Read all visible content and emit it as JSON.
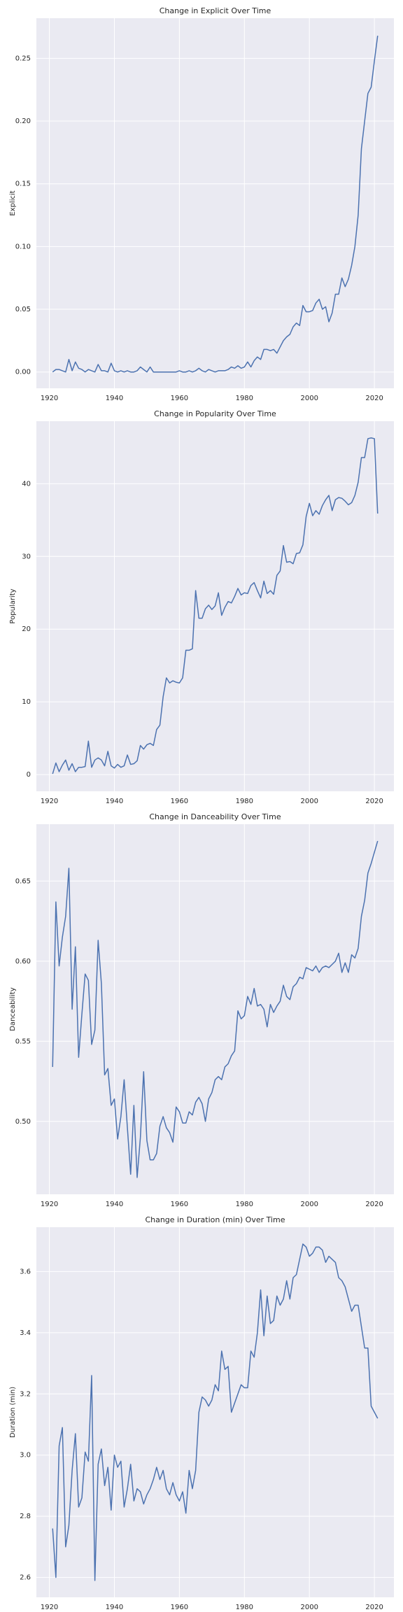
{
  "chart_data": [
    {
      "type": "line",
      "title": "Change in Explicit Over Time",
      "y_label": "Explicit",
      "x": [
        1921,
        1922,
        1923,
        1924,
        1925,
        1926,
        1927,
        1928,
        1929,
        1930,
        1931,
        1932,
        1933,
        1934,
        1935,
        1936,
        1937,
        1938,
        1939,
        1940,
        1941,
        1942,
        1943,
        1944,
        1945,
        1946,
        1947,
        1948,
        1949,
        1950,
        1951,
        1952,
        1953,
        1954,
        1955,
        1956,
        1957,
        1958,
        1959,
        1960,
        1961,
        1962,
        1963,
        1964,
        1965,
        1966,
        1967,
        1968,
        1969,
        1970,
        1971,
        1972,
        1973,
        1974,
        1975,
        1976,
        1977,
        1978,
        1979,
        1980,
        1981,
        1982,
        1983,
        1984,
        1985,
        1986,
        1987,
        1988,
        1989,
        1990,
        1991,
        1992,
        1993,
        1994,
        1995,
        1996,
        1997,
        1998,
        1999,
        2000,
        2001,
        2002,
        2003,
        2004,
        2005,
        2006,
        2007,
        2008,
        2009,
        2010,
        2011,
        2012,
        2013,
        2014,
        2015,
        2016,
        2017,
        2018,
        2019,
        2020,
        2021
      ],
      "series": [
        {
          "name": "Explicit",
          "color": "#4c72b0",
          "values": [
            0,
            0.002,
            0.002,
            0.001,
            0,
            0.01,
            0.001,
            0.008,
            0.003,
            0.002,
            0,
            0.002,
            0.001,
            0,
            0.006,
            0.001,
            0.001,
            0,
            0.007,
            0.001,
            0,
            0.001,
            0,
            0.001,
            0,
            0,
            0.001,
            0.004,
            0.002,
            0,
            0.004,
            0,
            0,
            0,
            0,
            0,
            0,
            0,
            0,
            0.001,
            0,
            0,
            0.001,
            0,
            0.001,
            0.003,
            0.001,
            0,
            0.002,
            0.001,
            0,
            0.001,
            0.001,
            0.001,
            0.002,
            0.004,
            0.003,
            0.005,
            0.003,
            0.004,
            0.008,
            0.004,
            0.009,
            0.012,
            0.01,
            0.018,
            0.018,
            0.017,
            0.018,
            0.015,
            0.02,
            0.025,
            0.028,
            0.03,
            0.036,
            0.039,
            0.037,
            0.053,
            0.048,
            0.048,
            0.049,
            0.055,
            0.058,
            0.05,
            0.052,
            0.04,
            0.047,
            0.062,
            0.062,
            0.075,
            0.068,
            0.074,
            0.085,
            0.1,
            0.125,
            0.178,
            0.2,
            0.222,
            0.227,
            0.248,
            0.268
          ]
        }
      ],
      "xlim": [
        1916,
        2026
      ],
      "xticks": [
        1920,
        1940,
        1960,
        1980,
        2000,
        2020
      ],
      "ylim": [
        -0.013,
        0.282
      ],
      "yticks": [
        {
          "value": 0,
          "label": "0.00"
        },
        {
          "value": 0.05,
          "label": "0.05"
        },
        {
          "value": 0.1,
          "label": "0.10"
        },
        {
          "value": 0.15,
          "label": "0.15"
        },
        {
          "value": 0.2,
          "label": "0.20"
        },
        {
          "value": 0.25,
          "label": "0.25"
        }
      ],
      "grid": true
    },
    {
      "type": "line",
      "title": "Change in Popularity Over Time",
      "y_label": "Popularity",
      "x": [
        1921,
        1922,
        1923,
        1924,
        1925,
        1926,
        1927,
        1928,
        1929,
        1930,
        1931,
        1932,
        1933,
        1934,
        1935,
        1936,
        1937,
        1938,
        1939,
        1940,
        1941,
        1942,
        1943,
        1944,
        1945,
        1946,
        1947,
        1948,
        1949,
        1950,
        1951,
        1952,
        1953,
        1954,
        1955,
        1956,
        1957,
        1958,
        1959,
        1960,
        1961,
        1962,
        1963,
        1964,
        1965,
        1966,
        1967,
        1968,
        1969,
        1970,
        1971,
        1972,
        1973,
        1974,
        1975,
        1976,
        1977,
        1978,
        1979,
        1980,
        1981,
        1982,
        1983,
        1984,
        1985,
        1986,
        1987,
        1988,
        1989,
        1990,
        1991,
        1992,
        1993,
        1994,
        1995,
        1996,
        1997,
        1998,
        1999,
        2000,
        2001,
        2002,
        2003,
        2004,
        2005,
        2006,
        2007,
        2008,
        2009,
        2010,
        2011,
        2012,
        2013,
        2014,
        2015,
        2016,
        2017,
        2018,
        2019,
        2020,
        2021
      ],
      "series": [
        {
          "name": "Popularity",
          "color": "#4c72b0",
          "values": [
            0.1,
            1.6,
            0.4,
            1.3,
            2.0,
            0.6,
            1.5,
            0.4,
            1.0,
            1.0,
            1.1,
            4.6,
            1.0,
            2.0,
            2.3,
            2.0,
            1.2,
            3.2,
            1.2,
            0.9,
            1.4,
            1.0,
            1.2,
            2.7,
            1.4,
            1.5,
            1.9,
            4.0,
            3.5,
            4.1,
            4.3,
            4.0,
            6.2,
            6.8,
            10.7,
            13.3,
            12.6,
            12.9,
            12.7,
            12.6,
            13.3,
            17.1,
            17.1,
            17.3,
            25.3,
            21.5,
            21.5,
            22.8,
            23.3,
            22.7,
            23.2,
            25.0,
            21.9,
            23.0,
            23.8,
            23.6,
            24.5,
            25.6,
            24.7,
            25.0,
            24.9,
            26.0,
            26.4,
            25.3,
            24.3,
            26.6,
            24.9,
            25.3,
            24.8,
            27.4,
            28.0,
            31.5,
            29.2,
            29.3,
            29.0,
            30.4,
            30.5,
            31.6,
            35.5,
            37.3,
            35.6,
            36.3,
            35.8,
            37.0,
            37.8,
            38.4,
            36.3,
            37.8,
            38.1,
            38.0,
            37.6,
            37.1,
            37.4,
            38.4,
            40.2,
            43.6,
            43.6,
            46.2,
            46.3,
            46.2,
            35.9
          ]
        }
      ],
      "xlim": [
        1916,
        2026
      ],
      "xticks": [
        1920,
        1940,
        1960,
        1980,
        2000,
        2020
      ],
      "ylim": [
        -2.3,
        48.6
      ],
      "yticks": [
        0,
        10,
        20,
        30,
        40
      ],
      "grid": true
    },
    {
      "type": "line",
      "title": "Change in Danceability Over Time",
      "y_label": "Danceability",
      "x": [
        1921,
        1922,
        1923,
        1924,
        1925,
        1926,
        1927,
        1928,
        1929,
        1930,
        1931,
        1932,
        1933,
        1934,
        1935,
        1936,
        1937,
        1938,
        1939,
        1940,
        1941,
        1942,
        1943,
        1944,
        1945,
        1946,
        1947,
        1948,
        1949,
        1950,
        1951,
        1952,
        1953,
        1954,
        1955,
        1956,
        1957,
        1958,
        1959,
        1960,
        1961,
        1962,
        1963,
        1964,
        1965,
        1966,
        1967,
        1968,
        1969,
        1970,
        1971,
        1972,
        1973,
        1974,
        1975,
        1976,
        1977,
        1978,
        1979,
        1980,
        1981,
        1982,
        1983,
        1984,
        1985,
        1986,
        1987,
        1988,
        1989,
        1990,
        1991,
        1992,
        1993,
        1994,
        1995,
        1996,
        1997,
        1998,
        1999,
        2000,
        2001,
        2002,
        2003,
        2004,
        2005,
        2006,
        2007,
        2008,
        2009,
        2010,
        2011,
        2012,
        2013,
        2014,
        2015,
        2016,
        2017,
        2018,
        2019,
        2020,
        2021
      ],
      "series": [
        {
          "name": "Danceability",
          "color": "#4c72b0",
          "values": [
            0.534,
            0.637,
            0.597,
            0.615,
            0.628,
            0.658,
            0.57,
            0.609,
            0.54,
            0.567,
            0.592,
            0.588,
            0.548,
            0.557,
            0.613,
            0.586,
            0.529,
            0.533,
            0.51,
            0.514,
            0.489,
            0.503,
            0.526,
            0.496,
            0.467,
            0.51,
            0.465,
            0.49,
            0.531,
            0.488,
            0.476,
            0.476,
            0.48,
            0.497,
            0.503,
            0.496,
            0.493,
            0.487,
            0.509,
            0.506,
            0.499,
            0.499,
            0.506,
            0.504,
            0.512,
            0.515,
            0.511,
            0.5,
            0.514,
            0.518,
            0.526,
            0.528,
            0.526,
            0.534,
            0.536,
            0.541,
            0.544,
            0.569,
            0.564,
            0.566,
            0.578,
            0.573,
            0.583,
            0.572,
            0.573,
            0.57,
            0.559,
            0.573,
            0.568,
            0.572,
            0.575,
            0.585,
            0.578,
            0.576,
            0.584,
            0.586,
            0.59,
            0.589,
            0.596,
            0.595,
            0.594,
            0.597,
            0.593,
            0.596,
            0.597,
            0.596,
            0.598,
            0.6,
            0.605,
            0.593,
            0.599,
            0.593,
            0.604,
            0.602,
            0.608,
            0.628,
            0.638,
            0.655,
            0.661,
            0.668,
            0.675
          ]
        }
      ],
      "xlim": [
        1916,
        2026
      ],
      "xticks": [
        1920,
        1940,
        1960,
        1980,
        2000,
        2020
      ],
      "ylim": [
        0.4545,
        0.6855
      ],
      "yticks": [
        {
          "value": 0.5,
          "label": "0.50"
        },
        {
          "value": 0.55,
          "label": "0.55"
        },
        {
          "value": 0.6,
          "label": "0.60"
        },
        {
          "value": 0.65,
          "label": "0.65"
        }
      ],
      "grid": true
    },
    {
      "type": "line",
      "title": "Change in Duration (min) Over Time",
      "y_label": "Duration (min)",
      "x": [
        1921,
        1922,
        1923,
        1924,
        1925,
        1926,
        1927,
        1928,
        1929,
        1930,
        1931,
        1932,
        1933,
        1934,
        1935,
        1936,
        1937,
        1938,
        1939,
        1940,
        1941,
        1942,
        1943,
        1944,
        1945,
        1946,
        1947,
        1948,
        1949,
        1950,
        1951,
        1952,
        1953,
        1954,
        1955,
        1956,
        1957,
        1958,
        1959,
        1960,
        1961,
        1962,
        1963,
        1964,
        1965,
        1966,
        1967,
        1968,
        1969,
        1970,
        1971,
        1972,
        1973,
        1974,
        1975,
        1976,
        1977,
        1978,
        1979,
        1980,
        1981,
        1982,
        1983,
        1984,
        1985,
        1986,
        1987,
        1988,
        1989,
        1990,
        1991,
        1992,
        1993,
        1994,
        1995,
        1996,
        1997,
        1998,
        1999,
        2000,
        2001,
        2002,
        2003,
        2004,
        2005,
        2006,
        2007,
        2008,
        2009,
        2010,
        2011,
        2012,
        2013,
        2014,
        2015,
        2016,
        2017,
        2018,
        2019,
        2020,
        2021
      ],
      "series": [
        {
          "name": "Duration (min)",
          "color": "#4c72b0",
          "values": [
            2.76,
            2.6,
            3.03,
            3.09,
            2.7,
            2.77,
            2.95,
            3.07,
            2.83,
            2.86,
            3.01,
            2.98,
            3.26,
            2.59,
            2.97,
            3.02,
            2.9,
            2.96,
            2.82,
            3.0,
            2.96,
            2.98,
            2.83,
            2.89,
            2.97,
            2.85,
            2.89,
            2.88,
            2.84,
            2.87,
            2.89,
            2.92,
            2.96,
            2.92,
            2.95,
            2.89,
            2.87,
            2.91,
            2.87,
            2.85,
            2.88,
            2.81,
            2.95,
            2.89,
            2.95,
            3.14,
            3.19,
            3.18,
            3.16,
            3.18,
            3.23,
            3.21,
            3.34,
            3.28,
            3.29,
            3.14,
            3.17,
            3.2,
            3.23,
            3.22,
            3.22,
            3.34,
            3.32,
            3.4,
            3.54,
            3.39,
            3.52,
            3.43,
            3.44,
            3.52,
            3.49,
            3.51,
            3.57,
            3.51,
            3.58,
            3.59,
            3.64,
            3.69,
            3.68,
            3.65,
            3.66,
            3.68,
            3.68,
            3.67,
            3.63,
            3.65,
            3.64,
            3.63,
            3.58,
            3.57,
            3.55,
            3.51,
            3.47,
            3.49,
            3.49,
            3.42,
            3.35,
            3.35,
            3.16,
            3.14,
            3.12
          ]
        }
      ],
      "xlim": [
        1916,
        2026
      ],
      "xticks": [
        1920,
        1940,
        1960,
        1980,
        2000,
        2020
      ],
      "ylim": [
        2.535,
        3.745
      ],
      "yticks": [
        2.6,
        2.8,
        {
          "value": 3,
          "label": "3.0"
        },
        3.2,
        3.4,
        3.6
      ],
      "grid": true
    }
  ]
}
